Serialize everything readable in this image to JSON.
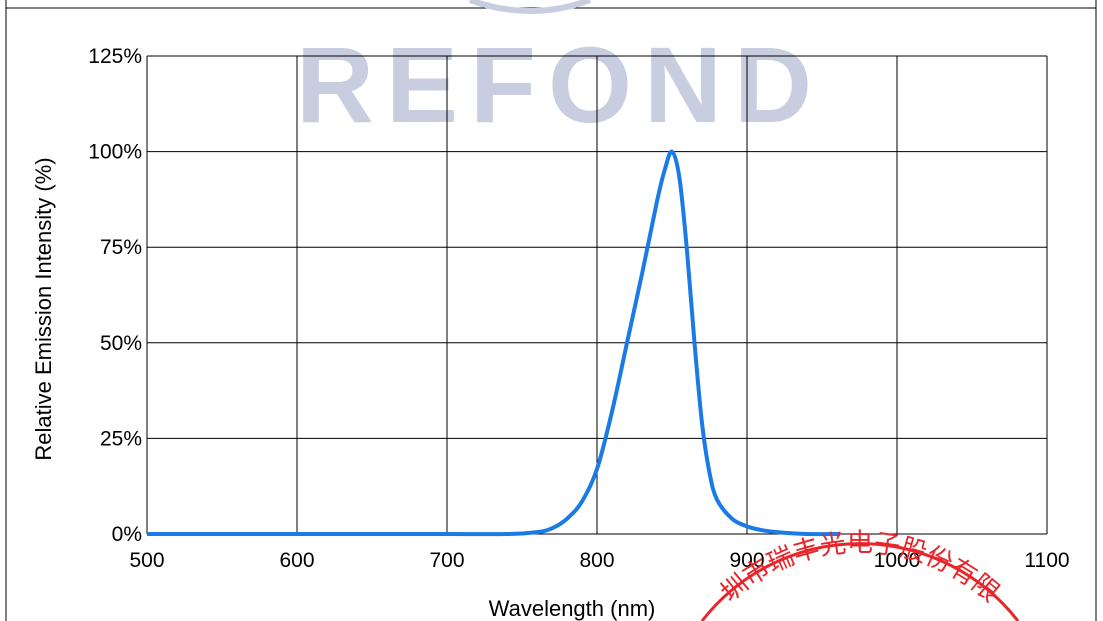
{
  "watermark": {
    "text": "REFOND",
    "color": "#c9cde0"
  },
  "stamp": {
    "text": "圳市瑞丰光电子股份有限",
    "color": "#e8252b"
  },
  "chart_data": {
    "type": "line",
    "title": "",
    "xlabel": "Wavelength  (nm)",
    "ylabel": "Relative Emission Intensity (%)",
    "xlim": [
      500,
      1100
    ],
    "ylim": [
      0,
      125
    ],
    "x_ticks": [
      500,
      600,
      700,
      800,
      900,
      1000,
      1100
    ],
    "x_tick_labels": [
      "500",
      "600",
      "700",
      "800",
      "900",
      "1000",
      "1100"
    ],
    "y_ticks": [
      0,
      25,
      50,
      75,
      100,
      125
    ],
    "y_tick_labels": [
      "0%",
      "25%",
      "50%",
      "75%",
      "100%",
      "125%"
    ],
    "grid": true,
    "legend": "none",
    "line_color": "#1a7ae6",
    "series": [
      {
        "x": [
          500,
          550,
          600,
          650,
          700,
          740,
          760,
          770,
          780,
          790,
          800,
          810,
          820,
          830,
          840,
          845,
          850,
          855,
          860,
          865,
          870,
          875,
          880,
          890,
          900,
          910,
          920,
          940,
          962
        ],
        "y": [
          0,
          0,
          0,
          0,
          0,
          0,
          0.5,
          1.5,
          4,
          8.5,
          17,
          32,
          50,
          68,
          87,
          95,
          100,
          93,
          74,
          50,
          29,
          16,
          9,
          4,
          2,
          1,
          0.5,
          0,
          0
        ]
      }
    ]
  }
}
